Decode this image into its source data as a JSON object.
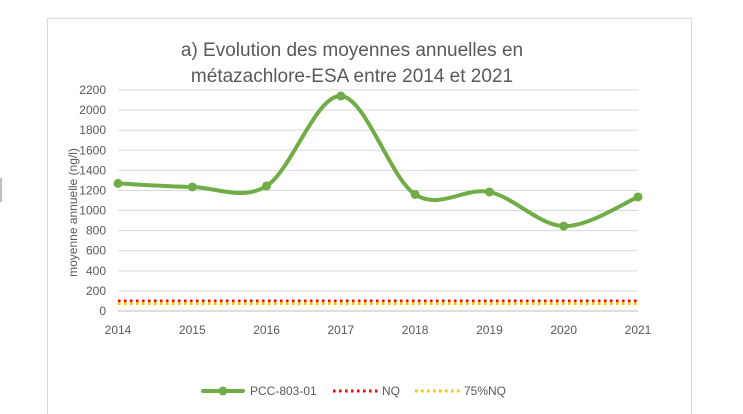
{
  "chart_data": {
    "type": "line",
    "title": "a) Evolution des moyennes annuelles en métazachlore-ESA entre 2014 et 2021",
    "title_lines": [
      "a) Evolution des moyennes annuelles en",
      "métazachlore-ESA entre 2014 et 2021"
    ],
    "xlabel": "",
    "ylabel": "moyenne annuelle (ng/l)",
    "x": [
      2014,
      2015,
      2016,
      2017,
      2018,
      2019,
      2020,
      2021
    ],
    "x_tick_labels": [
      "2014",
      "2015",
      "2016",
      "2017",
      "2018",
      "2019",
      "2020",
      "2021"
    ],
    "y_tick_labels": [
      "0",
      "200",
      "400",
      "600",
      "800",
      "1000",
      "1200",
      "1400",
      "1600",
      "1800",
      "2000",
      "2200"
    ],
    "ylim": [
      0,
      2200
    ],
    "grid": "horizontal",
    "legend_position": "bottom",
    "series": [
      {
        "name": "PCC-803-01",
        "style": "smooth line with markers",
        "color": "#70ad47",
        "values": [
          1270,
          1235,
          1245,
          2140,
          1160,
          1185,
          845,
          1135
        ]
      },
      {
        "name": "NQ",
        "style": "dotted",
        "color": "#ff0000",
        "values": [
          100,
          100,
          100,
          100,
          100,
          100,
          100,
          100
        ]
      },
      {
        "name": "75%NQ",
        "style": "dotted",
        "color": "#ffc000",
        "values": [
          75,
          75,
          75,
          75,
          75,
          75,
          75,
          75
        ]
      }
    ]
  }
}
